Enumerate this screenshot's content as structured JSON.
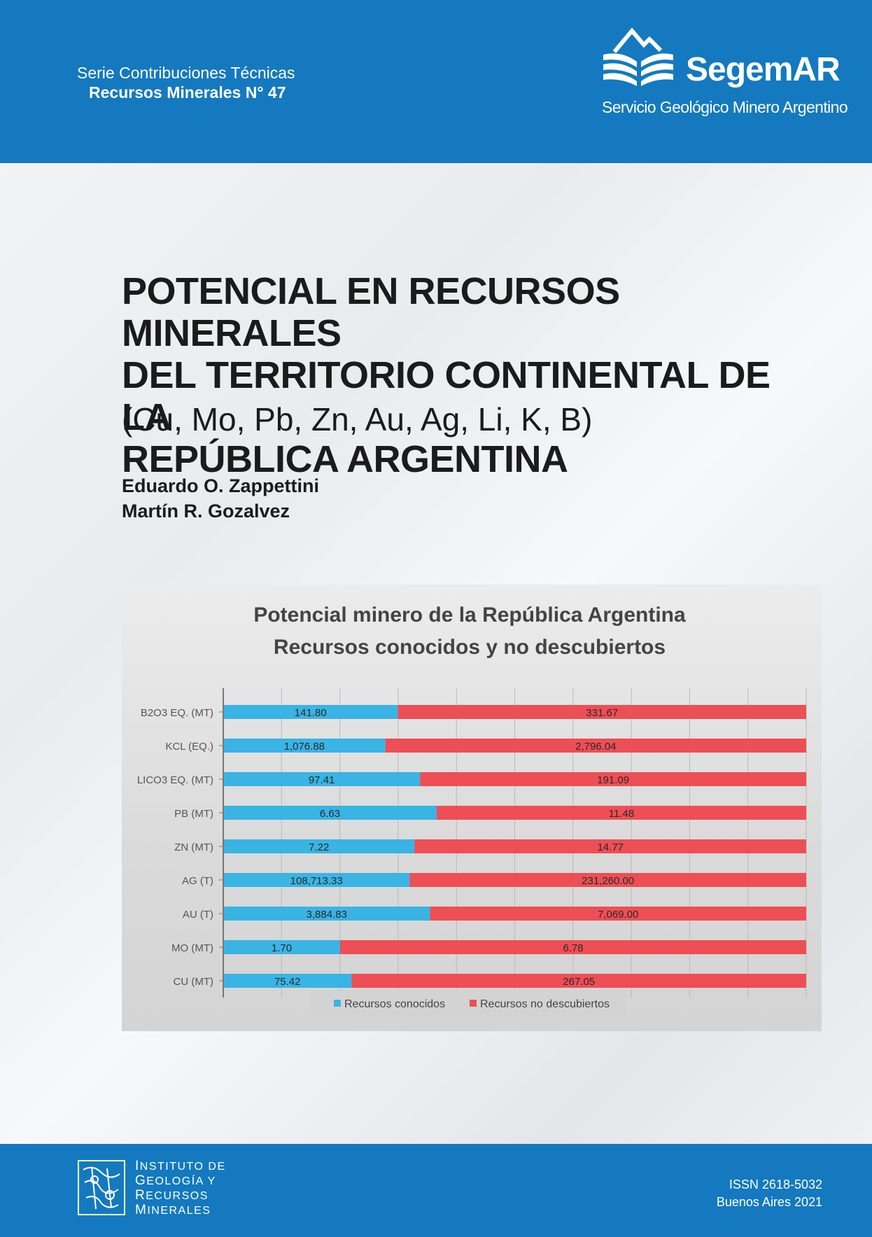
{
  "header": {
    "series_line1": "Serie Contribuciones Técnicas",
    "series_line2": "Recursos Minerales N° 47",
    "logo_name": "SegemAR",
    "logo_subtitle": "Servicio Geológico Minero Argentino"
  },
  "title": {
    "line1": "POTENCIAL EN RECURSOS MINERALES",
    "line2": "DEL TERRITORIO CONTINENTAL DE LA",
    "line3": "REPÚBLICA ARGENTINA",
    "subtitle": "(Cu, Mo, Pb, Zn, Au, Ag, Li, K, B)"
  },
  "authors": [
    "Eduardo O. Zappettini",
    "Martín R. Gozalvez"
  ],
  "chart_data": {
    "type": "bar",
    "orientation": "horizontal",
    "stacked": "percent",
    "title": "Potencial minero de la República Argentina",
    "subtitle": "Recursos conocidos y no descubiertos",
    "xlim": [
      0,
      100
    ],
    "legend_position": "bottom",
    "categories": [
      "B2O3 EQ. (MT)",
      "KCL (EQ.)",
      "LICO3 EQ. (MT)",
      "PB (MT)",
      "ZN (MT)",
      "AG (T)",
      "AU (T)",
      "MO (MT)",
      "CU (MT)"
    ],
    "series": [
      {
        "name": "Recursos conocidos",
        "color": "#39b4e4",
        "values": [
          141.8,
          1076.88,
          97.41,
          6.63,
          7.22,
          108713.33,
          3884.83,
          1.7,
          75.42
        ],
        "labels": [
          "141.80",
          "1,076.88",
          "97.41",
          "6.63",
          "7.22",
          "108,713.33",
          "3,884.83",
          "1.70",
          "75.42"
        ]
      },
      {
        "name": "Recursos no descubiertos",
        "color": "#ee4e55",
        "values": [
          331.67,
          2796.04,
          191.09,
          11.48,
          14.77,
          231260.0,
          7069.0,
          6.78,
          267.05
        ],
        "labels": [
          "331.67",
          "2,796.04",
          "191.09",
          "11.48",
          "14.77",
          "231,260.00",
          "7,069.00",
          "6.78",
          "267.05"
        ]
      }
    ]
  },
  "footer": {
    "institute": [
      {
        "cap": "I",
        "rest": "NSTITUTO DE"
      },
      {
        "cap": "G",
        "rest": "EOLOGÍA Y"
      },
      {
        "cap": "R",
        "rest": "ECURSOS"
      },
      {
        "cap": "M",
        "rest": "INERALES"
      }
    ],
    "issn": "ISSN 2618-5032",
    "place_year": "Buenos Aires 2021"
  }
}
